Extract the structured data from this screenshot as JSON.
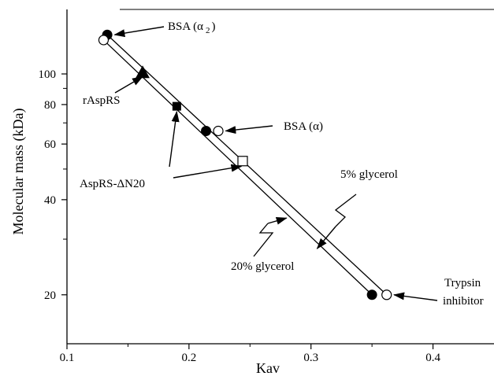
{
  "chart_data": {
    "type": "scatter",
    "title": "",
    "xlabel": "Kav",
    "ylabel": "Molecular mass (kDa)",
    "y_scale": "log",
    "xlim": [
      0.1,
      0.45
    ],
    "ylim": [
      14,
      160
    ],
    "x_ticks": [
      0.1,
      0.2,
      0.3,
      0.4
    ],
    "x_tick_labels": [
      "0.1",
      "0.2",
      "0.3",
      "0.4"
    ],
    "y_ticks": [
      20,
      40,
      60,
      80,
      100
    ],
    "y_tick_labels": [
      "20",
      "40",
      "60",
      "80",
      "100"
    ],
    "grid": false,
    "series": [
      {
        "marker": "filled-circle",
        "points": [
          {
            "x": 0.133,
            "y": 133
          },
          {
            "x": 0.214,
            "y": 66
          },
          {
            "x": 0.35,
            "y": 20
          }
        ]
      },
      {
        "marker": "open-circle",
        "points": [
          {
            "x": 0.13,
            "y": 128
          },
          {
            "x": 0.224,
            "y": 66
          },
          {
            "x": 0.362,
            "y": 20
          }
        ]
      },
      {
        "marker": "filled-triangle",
        "points": [
          {
            "x": 0.162,
            "y": 101
          }
        ]
      },
      {
        "marker": "filled-square",
        "points": [
          {
            "x": 0.19,
            "y": 79
          }
        ]
      },
      {
        "marker": "open-square",
        "points": [
          {
            "x": 0.244,
            "y": 53
          }
        ]
      }
    ],
    "lines": [
      {
        "x": [
          0.13,
          0.35
        ],
        "y": [
          128,
          20
        ]
      },
      {
        "x": [
          0.133,
          0.362
        ],
        "y": [
          133,
          20
        ]
      }
    ],
    "annotations": [
      {
        "text": "BSA (α 2 )",
        "x": 0.195,
        "y": 131,
        "arrow_to": {
          "x": 0.139,
          "y": 133
        }
      },
      {
        "text": "rAspRS",
        "x": 0.115,
        "y": 73,
        "arrow_to": {
          "x": 0.162,
          "y": 98
        }
      },
      {
        "text": "BSA (α)",
        "x": 0.285,
        "y": 66,
        "arrow_to": {
          "x": 0.23,
          "y": 66
        }
      },
      {
        "text": "AspRS-ΔN20",
        "x": 0.115,
        "y": 43,
        "arrow_to": {
          "x": 0.243,
          "y": 51
        }
      },
      {
        "text": "5% glycerol",
        "x": 0.355,
        "y": 45,
        "arrow_to": {
          "x": 0.305,
          "y": 28
        }
      },
      {
        "text": "20% glycerol",
        "x": 0.3,
        "y": 24.5,
        "arrow_to": {
          "x": 0.28,
          "y": 35
        }
      },
      {
        "text": "Trypsin inhibitor",
        "x": 0.41,
        "y": 20,
        "arrow_to": {
          "x": 0.368,
          "y": 20
        }
      }
    ]
  },
  "annotations_text": {
    "bsa_a2_main": "BSA (α",
    "bsa_a2_sub": "2",
    "bsa_a2_close": ")",
    "raspres": "rAspRS",
    "bsa_a": "BSA (α)",
    "asprs_dn20": "AspRS-ΔN20",
    "glycerol_5": "5% glycerol",
    "glycerol_20": "20% glycerol",
    "trypsin_1": "Trypsin",
    "trypsin_2": "inhibitor"
  }
}
